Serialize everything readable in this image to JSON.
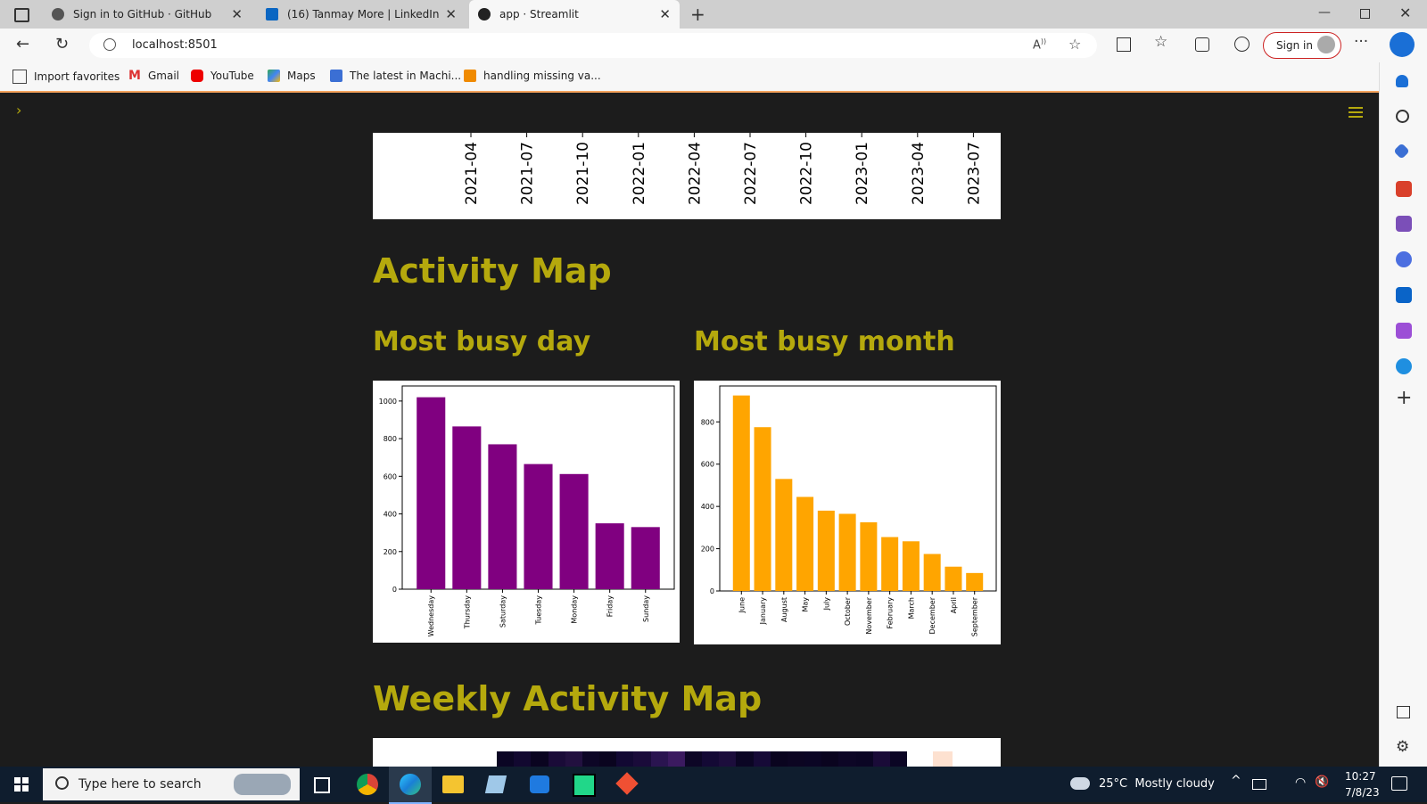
{
  "browser": {
    "tabs": [
      {
        "label": "Sign in to GitHub · GitHub"
      },
      {
        "label": "(16) Tanmay More | LinkedIn"
      },
      {
        "label": "app · Streamlit"
      }
    ],
    "url": "localhost:8501",
    "sign_in_label": "Sign in",
    "bookmarks": [
      {
        "label": "Import favorites"
      },
      {
        "label": "Gmail"
      },
      {
        "label": "YouTube"
      },
      {
        "label": "Maps"
      },
      {
        "label": "The latest in Machi..."
      },
      {
        "label": "handling missing va..."
      }
    ]
  },
  "page": {
    "timeline_ticks": [
      "2021-04",
      "2021-07",
      "2021-10",
      "2022-01",
      "2022-04",
      "2022-07",
      "2022-10",
      "2023-01",
      "2023-04",
      "2023-07"
    ],
    "activity_map_title": "Activity Map",
    "busy_day_title": "Most busy day",
    "busy_month_title": "Most busy month",
    "weekly_title": "Weekly Activity Map"
  },
  "chart_data": [
    {
      "type": "bar",
      "categories": [
        "Wednesday",
        "Thursday",
        "Saturday",
        "Tuesday",
        "Monday",
        "Friday",
        "Sunday"
      ],
      "values": [
        1020,
        865,
        770,
        665,
        612,
        350,
        330
      ],
      "ylim": [
        0,
        1080
      ],
      "yticks": [
        0,
        200,
        400,
        600,
        800,
        1000
      ],
      "color": "#800080"
    },
    {
      "type": "bar",
      "categories": [
        "June",
        "January",
        "August",
        "May",
        "July",
        "October",
        "November",
        "February",
        "March",
        "December",
        "April",
        "September"
      ],
      "values": [
        925,
        775,
        530,
        445,
        380,
        365,
        325,
        255,
        235,
        175,
        115,
        85
      ],
      "ylim": [
        0,
        970
      ],
      "yticks": [
        0,
        200,
        400,
        600,
        800
      ],
      "color": "#FFA500"
    }
  ],
  "taskbar": {
    "search_placeholder": "Type here to search",
    "weather": "25°C  Mostly cloudy",
    "time": "10:27",
    "date": "7/8/23"
  }
}
